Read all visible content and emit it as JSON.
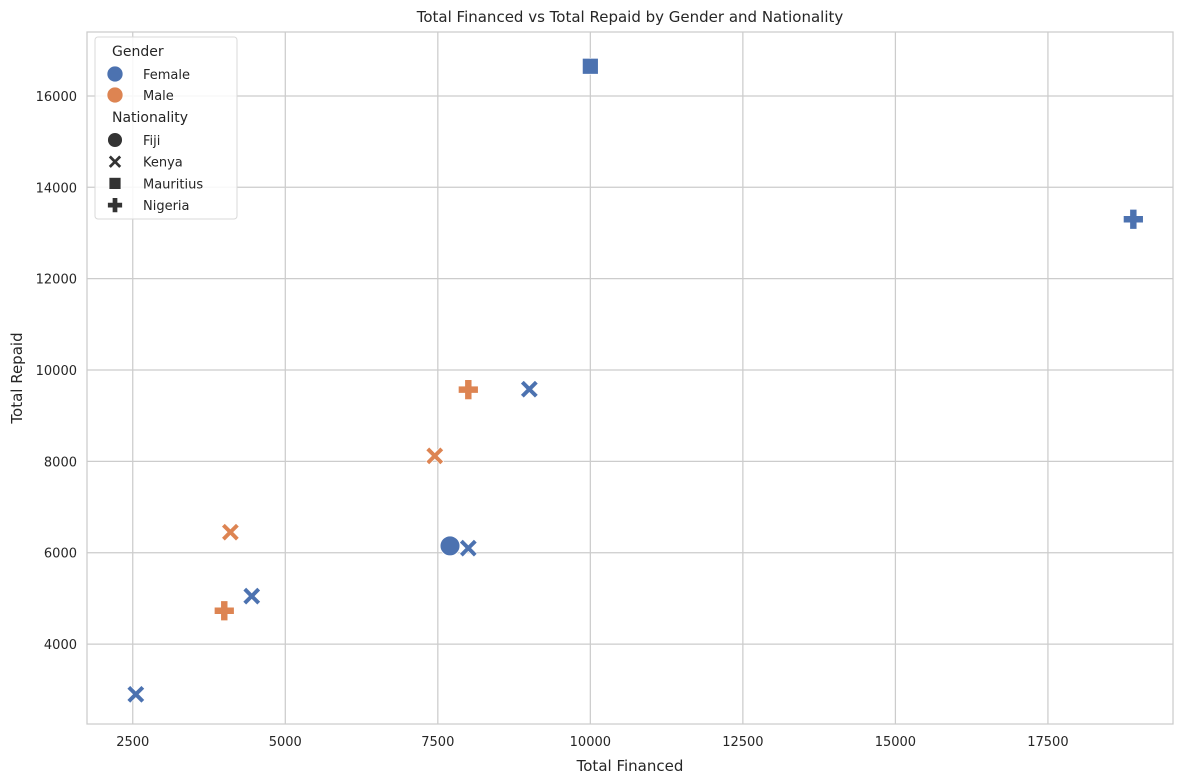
{
  "chart_data": {
    "type": "scatter",
    "title": "Total Financed vs Total Repaid by Gender and Nationality",
    "xlabel": "Total Financed",
    "ylabel": "Total Repaid",
    "xlim": [
      1750,
      19550
    ],
    "ylim": [
      2250,
      17400
    ],
    "xticks": [
      2500,
      5000,
      7500,
      10000,
      12500,
      15000,
      17500
    ],
    "yticks": [
      4000,
      6000,
      8000,
      10000,
      12000,
      14000,
      16000
    ],
    "grid": true,
    "legend_position": "top-left",
    "gender_legend": {
      "title": "Gender",
      "entries": [
        {
          "label": "Female",
          "color": "#4c72b0"
        },
        {
          "label": "Male",
          "color": "#dd8452"
        }
      ]
    },
    "nationality_legend": {
      "title": "Nationality",
      "entries": [
        {
          "label": "Fiji",
          "marker": "circle"
        },
        {
          "label": "Kenya",
          "marker": "x"
        },
        {
          "label": "Mauritius",
          "marker": "square"
        },
        {
          "label": "Nigeria",
          "marker": "plus"
        }
      ]
    },
    "points": [
      {
        "x": 2550,
        "y": 2900,
        "gender": "Female",
        "nationality": "Kenya"
      },
      {
        "x": 4450,
        "y": 5050,
        "gender": "Female",
        "nationality": "Kenya"
      },
      {
        "x": 7700,
        "y": 6150,
        "gender": "Female",
        "nationality": "Fiji"
      },
      {
        "x": 8000,
        "y": 6100,
        "gender": "Female",
        "nationality": "Kenya"
      },
      {
        "x": 9000,
        "y": 9580,
        "gender": "Female",
        "nationality": "Kenya"
      },
      {
        "x": 10000,
        "y": 16650,
        "gender": "Female",
        "nationality": "Mauritius"
      },
      {
        "x": 18900,
        "y": 13300,
        "gender": "Female",
        "nationality": "Nigeria"
      },
      {
        "x": 4000,
        "y": 4730,
        "gender": "Male",
        "nationality": "Nigeria"
      },
      {
        "x": 4100,
        "y": 6450,
        "gender": "Male",
        "nationality": "Kenya"
      },
      {
        "x": 7450,
        "y": 8120,
        "gender": "Male",
        "nationality": "Kenya"
      },
      {
        "x": 8000,
        "y": 9570,
        "gender": "Male",
        "nationality": "Nigeria"
      }
    ]
  }
}
